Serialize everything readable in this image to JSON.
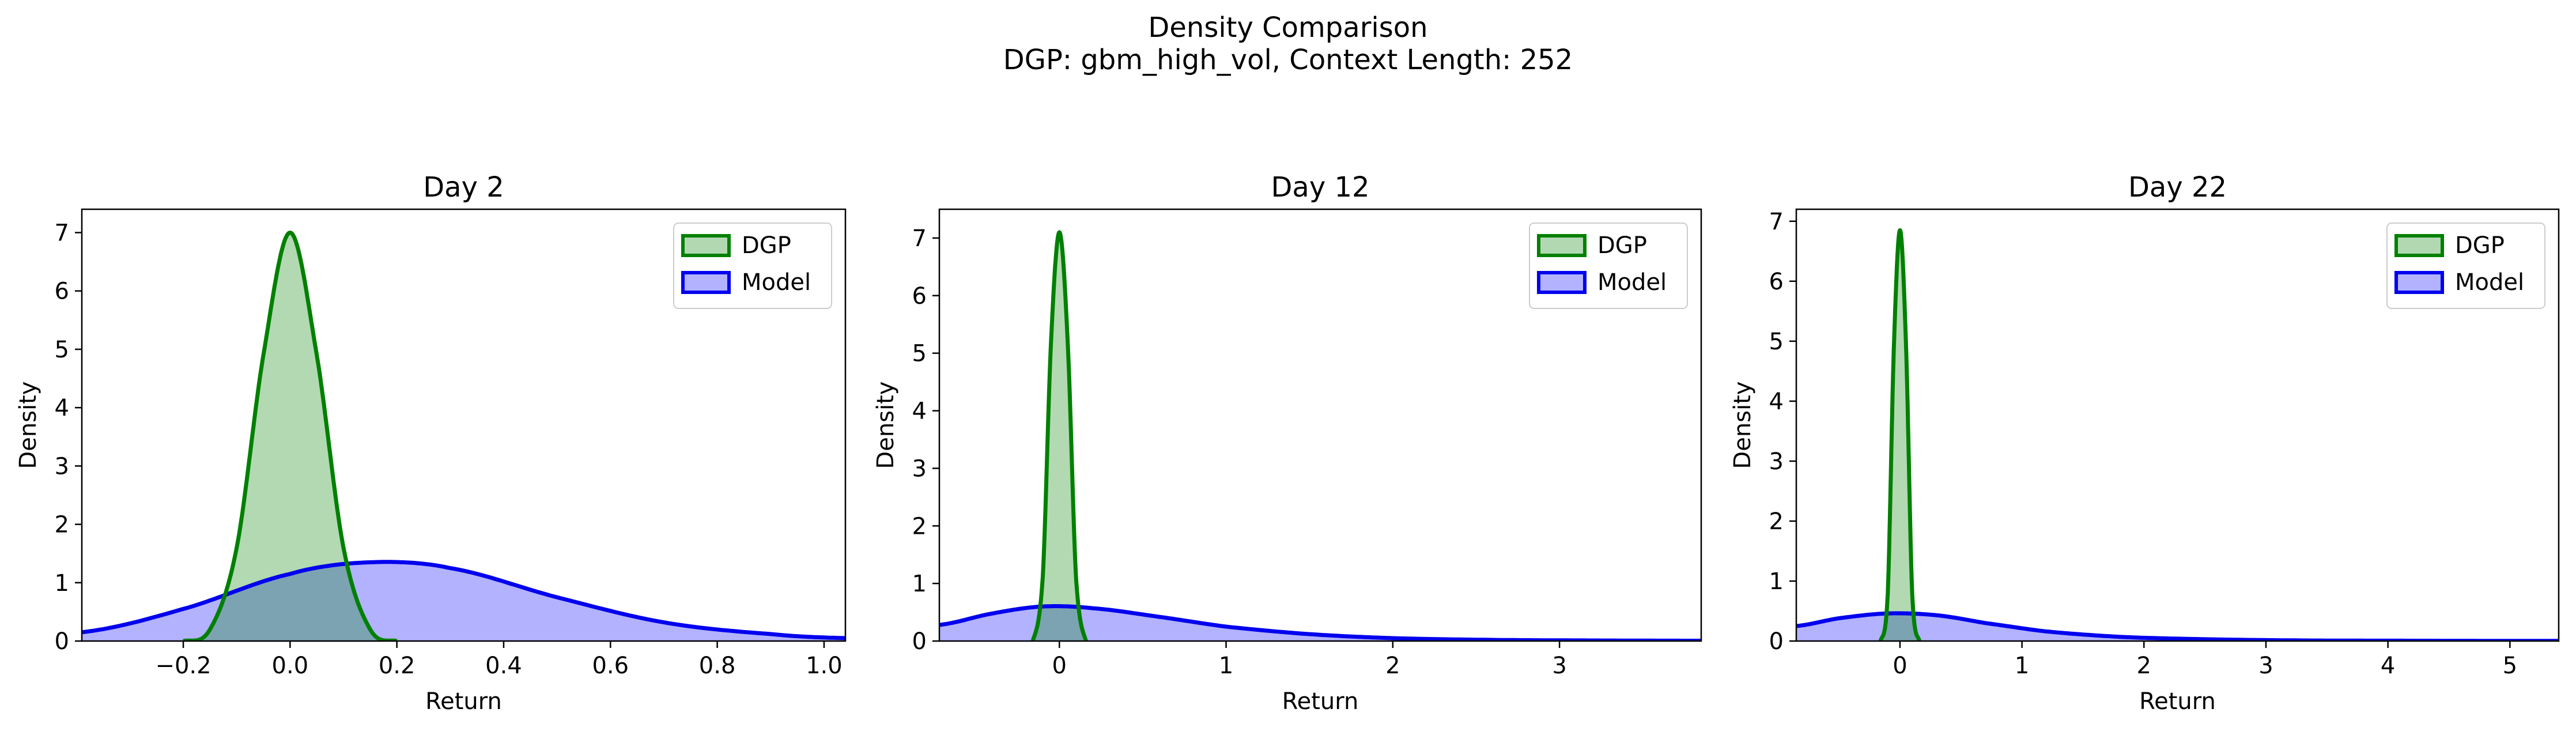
{
  "figure": {
    "title_line1": "Density Comparison",
    "title_line2": "DGP: gbm_high_vol, Context Length: 252"
  },
  "colors": {
    "dgp_line": "#008000",
    "dgp_fill": "#b2d8b2",
    "model_line": "#0000ee",
    "model_fill": "#b2b2ff",
    "overlap_fill": "#7f9fcf"
  },
  "chart_data": [
    {
      "type": "area",
      "title": "Day 2",
      "xlabel": "Return",
      "ylabel": "Density",
      "xlim": [
        -0.39,
        1.04
      ],
      "ylim": [
        0,
        7.4
      ],
      "xticks": [
        -0.2,
        0.0,
        0.2,
        0.4,
        0.6,
        0.8,
        1.0
      ],
      "xtick_labels": [
        "−0.2",
        "0.0",
        "0.2",
        "0.4",
        "0.6",
        "0.8",
        "1.0"
      ],
      "yticks": [
        0,
        1,
        2,
        3,
        4,
        5,
        6,
        7
      ],
      "ytick_labels": [
        "0",
        "1",
        "2",
        "3",
        "4",
        "5",
        "6",
        "7"
      ],
      "legend_position": "top-right",
      "series": [
        {
          "name": "DGP",
          "x": [
            -0.2,
            -0.15,
            -0.1,
            -0.05,
            0.0,
            0.05,
            0.1,
            0.15,
            0.2
          ],
          "y": [
            0.0,
            0.2,
            1.6,
            4.9,
            7.0,
            4.9,
            1.6,
            0.2,
            0.0
          ]
        },
        {
          "name": "Model",
          "x": [
            -0.39,
            -0.2,
            0.0,
            0.15,
            0.3,
            0.5,
            0.7,
            0.9,
            1.04
          ],
          "y": [
            0.15,
            0.55,
            1.15,
            1.35,
            1.25,
            0.75,
            0.32,
            0.12,
            0.05
          ]
        }
      ]
    },
    {
      "type": "area",
      "title": "Day 12",
      "xlabel": "Return",
      "ylabel": "Density",
      "xlim": [
        -0.72,
        3.85
      ],
      "ylim": [
        0,
        7.5
      ],
      "xticks": [
        0,
        1,
        2,
        3
      ],
      "xtick_labels": [
        "0",
        "1",
        "2",
        "3"
      ],
      "yticks": [
        0,
        1,
        2,
        3,
        4,
        5,
        6,
        7
      ],
      "ytick_labels": [
        "0",
        "1",
        "2",
        "3",
        "4",
        "5",
        "6",
        "7"
      ],
      "legend_position": "top-right",
      "series": [
        {
          "name": "DGP",
          "x": [
            -0.16,
            -0.1,
            -0.05,
            0.0,
            0.05,
            0.1,
            0.16
          ],
          "y": [
            0.0,
            1.1,
            5.2,
            7.1,
            5.2,
            1.1,
            0.0
          ]
        },
        {
          "name": "Model",
          "x": [
            -0.72,
            -0.4,
            -0.1,
            0.2,
            0.6,
            1.0,
            1.5,
            2.0,
            2.6,
            3.2,
            3.85
          ],
          "y": [
            0.28,
            0.48,
            0.6,
            0.57,
            0.42,
            0.25,
            0.12,
            0.05,
            0.02,
            0.01,
            0.005
          ]
        }
      ]
    },
    {
      "type": "area",
      "title": "Day 22",
      "xlabel": "Return",
      "ylabel": "Density",
      "xlim": [
        -0.85,
        5.4
      ],
      "ylim": [
        0,
        7.2
      ],
      "xticks": [
        0,
        1,
        2,
        3,
        4,
        5
      ],
      "xtick_labels": [
        "0",
        "1",
        "2",
        "3",
        "4",
        "5"
      ],
      "yticks": [
        0,
        1,
        2,
        3,
        4,
        5,
        6,
        7
      ],
      "ytick_labels": [
        "0",
        "1",
        "2",
        "3",
        "4",
        "5",
        "6",
        "7"
      ],
      "legend_position": "top-right",
      "series": [
        {
          "name": "DGP",
          "x": [
            -0.16,
            -0.1,
            -0.05,
            0.0,
            0.05,
            0.1,
            0.16
          ],
          "y": [
            0.0,
            0.8,
            4.9,
            6.85,
            4.9,
            0.8,
            0.0
          ]
        },
        {
          "name": "Model",
          "x": [
            -0.85,
            -0.5,
            -0.1,
            0.3,
            0.7,
            1.2,
            1.8,
            2.5,
            3.3,
            4.2,
            5.4
          ],
          "y": [
            0.25,
            0.38,
            0.46,
            0.43,
            0.3,
            0.16,
            0.07,
            0.03,
            0.01,
            0.005,
            0.002
          ]
        }
      ]
    }
  ]
}
